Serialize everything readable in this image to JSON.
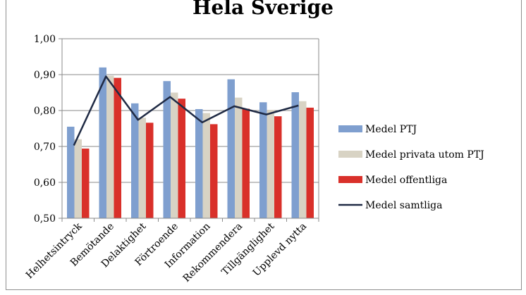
{
  "chart_data": {
    "type": "bar",
    "title": "Hela Sverige",
    "xlabel": "",
    "ylabel": "",
    "ylim": [
      0.5,
      1.0
    ],
    "yticks": [
      "0,50",
      "0,60",
      "0,70",
      "0,80",
      "0,90",
      "1,00"
    ],
    "categories": [
      "Helhetsintryck",
      "Bemötande",
      "Delaktighet",
      "Förtroende",
      "Information",
      "Rekommendera",
      "Tillgänglighet",
      "Upplevd nytta"
    ],
    "series": [
      {
        "name": "Medel PTJ",
        "kind": "bar",
        "color": "#7f9fcf",
        "values": [
          0.755,
          0.92,
          0.82,
          0.882,
          0.804,
          0.887,
          0.823,
          0.851
        ]
      },
      {
        "name": "Medel privata utom PTJ",
        "kind": "bar",
        "color": "#d8d3c4",
        "values": [
          0.72,
          0.897,
          0.78,
          0.85,
          0.793,
          0.836,
          0.802,
          0.826
        ]
      },
      {
        "name": "Medel offentliga",
        "kind": "bar",
        "color": "#d9302a",
        "values": [
          0.694,
          0.891,
          0.766,
          0.833,
          0.762,
          0.805,
          0.784,
          0.808
        ]
      },
      {
        "name": "Medel samtliga",
        "kind": "line",
        "color": "#1f2a44",
        "values": [
          0.703,
          0.895,
          0.774,
          0.838,
          0.767,
          0.812,
          0.789,
          0.814
        ]
      }
    ],
    "grid": true,
    "legend": "right"
  }
}
